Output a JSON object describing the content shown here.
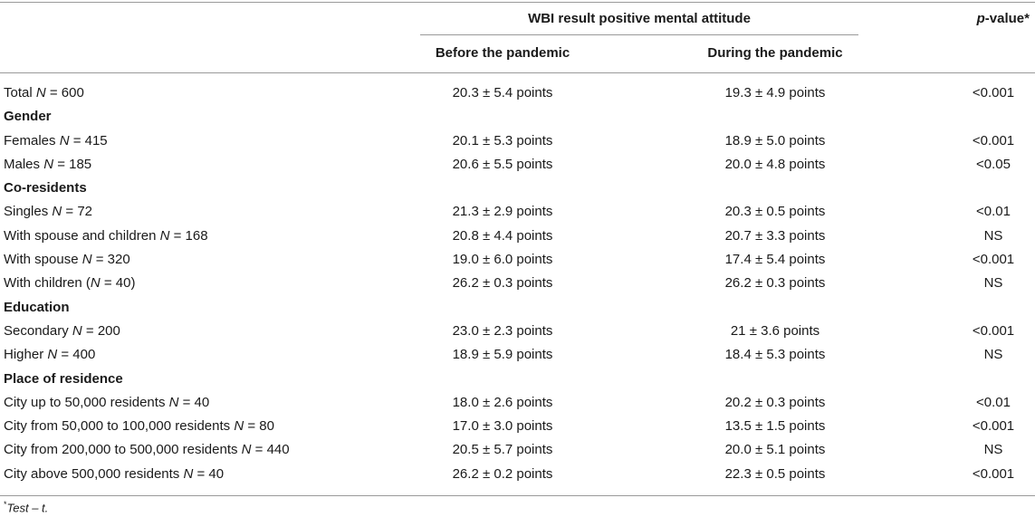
{
  "header": {
    "group_label": "WBI result positive mental attitude",
    "col_before": "Before the pandemic",
    "col_during": "During the pandemic",
    "p_italic": "p",
    "p_rest": "-value*"
  },
  "rows": [
    {
      "type": "data",
      "label": "Total ",
      "n": "N",
      "eq": " = 600",
      "before": "20.3 ± 5.4 points",
      "during": "19.3 ± 4.9 points",
      "p": "<0.001"
    },
    {
      "type": "section",
      "label": "Gender"
    },
    {
      "type": "data",
      "label": "Females ",
      "n": "N",
      "eq": " = 415",
      "before": "20.1 ± 5.3 points",
      "during": "18.9 ± 5.0 points",
      "p": "<0.001"
    },
    {
      "type": "data",
      "label": "Males ",
      "n": "N",
      "eq": " = 185",
      "before": "20.6 ± 5.5 points",
      "during": "20.0 ± 4.8 points",
      "p": "<0.05"
    },
    {
      "type": "section",
      "label": "Co-residents"
    },
    {
      "type": "data",
      "label": "Singles ",
      "n": "N",
      "eq": " = 72",
      "before": "21.3 ± 2.9 points",
      "during": "20.3 ± 0.5 points",
      "p": "<0.01"
    },
    {
      "type": "data",
      "label": "With spouse and children ",
      "n": "N",
      "eq": " = 168",
      "before": "20.8 ± 4.4 points",
      "during": "20.7 ± 3.3 points",
      "p": "NS"
    },
    {
      "type": "data",
      "label": "With spouse ",
      "n": "N",
      "eq": " = 320",
      "before": "19.0 ± 6.0 points",
      "during": "17.4 ± 5.4 points",
      "p": "<0.001"
    },
    {
      "type": "data",
      "label": "With children (",
      "n": "N",
      "eq": " = 40)",
      "before": "26.2 ± 0.3 points",
      "during": "26.2 ± 0.3 points",
      "p": "NS"
    },
    {
      "type": "section",
      "label": "Education"
    },
    {
      "type": "data",
      "label": "Secondary ",
      "n": "N",
      "eq": " = 200",
      "before": "23.0 ± 2.3 points",
      "during": "21 ± 3.6 points",
      "p": "<0.001"
    },
    {
      "type": "data",
      "label": "Higher ",
      "n": "N",
      "eq": " = 400",
      "before": "18.9 ± 5.9 points",
      "during": "18.4 ± 5.3 points",
      "p": "NS"
    },
    {
      "type": "section",
      "label": "Place of residence"
    },
    {
      "type": "data",
      "label": "City up to 50,000 residents ",
      "n": "N",
      "eq": " = 40",
      "before": "18.0 ± 2.6 points",
      "during": "20.2 ± 0.3 points",
      "p": "<0.01"
    },
    {
      "type": "data",
      "label": "City from 50,000 to 100,000 residents ",
      "n": "N",
      "eq": " = 80",
      "before": "17.0 ± 3.0 points",
      "during": "13.5 ± 1.5 points",
      "p": "<0.001"
    },
    {
      "type": "data",
      "label": "City from 200,000 to 500,000 residents ",
      "n": "N",
      "eq": " = 440",
      "before": "20.5 ± 5.7 points",
      "during": "20.0 ± 5.1 points",
      "p": "NS"
    },
    {
      "type": "data",
      "label": "City above 500,000 residents ",
      "n": "N",
      "eq": " = 40",
      "before": "26.2 ± 0.2 points",
      "during": "22.3 ± 0.5 points",
      "p": "<0.001"
    }
  ],
  "footnote": {
    "mark": "*",
    "text": "Test – t."
  }
}
